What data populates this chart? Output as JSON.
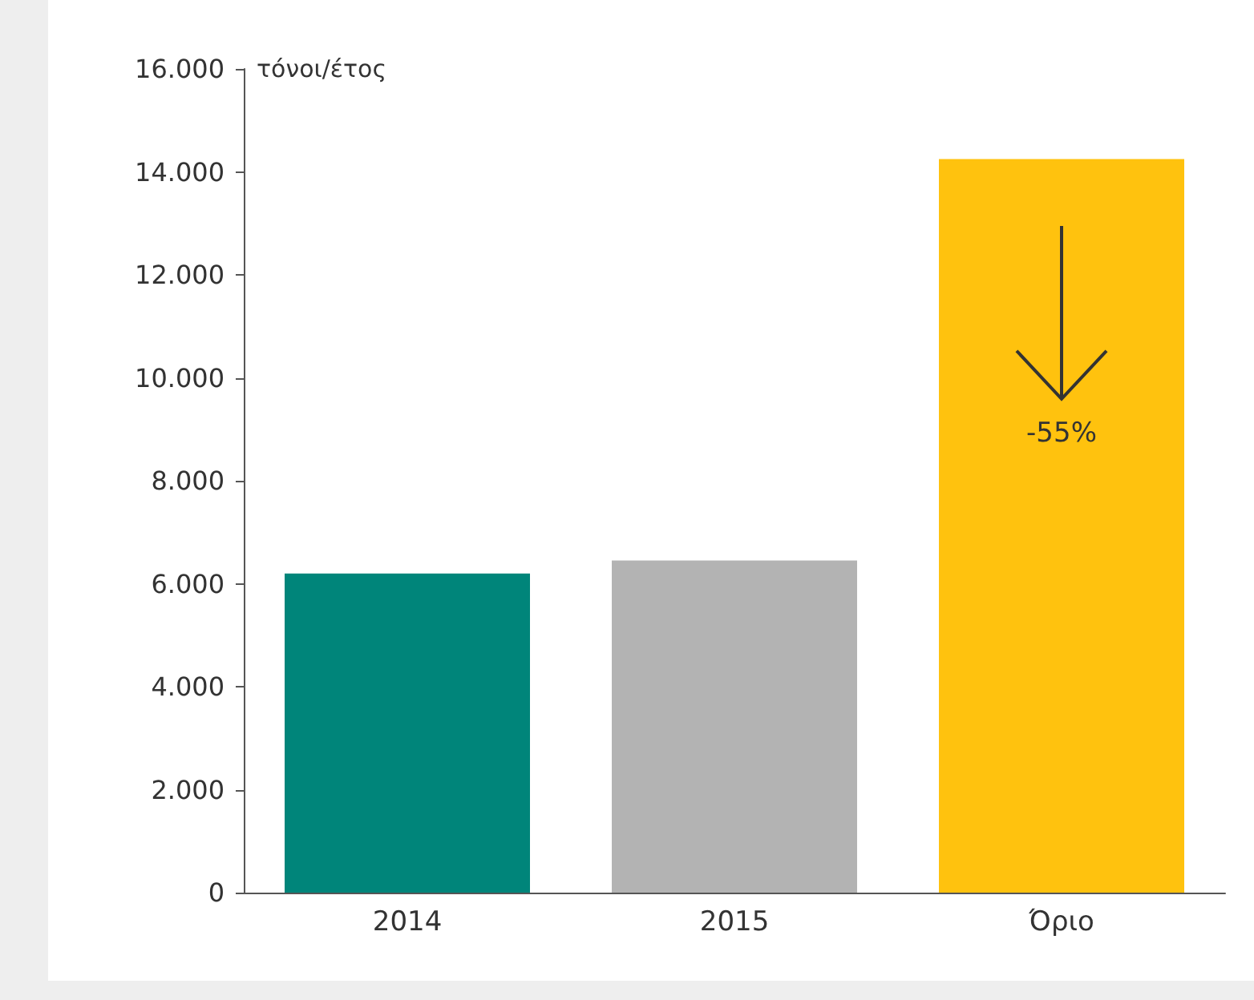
{
  "chart_data": {
    "type": "bar",
    "ylabel": "τόνοι/έτος",
    "categories": [
      "2014",
      "2015",
      "Όριο"
    ],
    "values": [
      6200,
      6450,
      14250
    ],
    "colors": [
      "#00857a",
      "#b3b3b3",
      "#ffc20e"
    ],
    "ylim": [
      0,
      16000
    ],
    "yticks": [
      {
        "value": 0,
        "label": "0"
      },
      {
        "value": 2000,
        "label": "2.000"
      },
      {
        "value": 4000,
        "label": "4.000"
      },
      {
        "value": 6000,
        "label": "6.000"
      },
      {
        "value": 8000,
        "label": "8.000"
      },
      {
        "value": 10000,
        "label": "10.000"
      },
      {
        "value": 12000,
        "label": "12.000"
      },
      {
        "value": 14000,
        "label": "14.000"
      },
      {
        "value": 16000,
        "label": "16.000"
      }
    ],
    "annotations": [
      "-55%"
    ],
    "grid": false
  }
}
